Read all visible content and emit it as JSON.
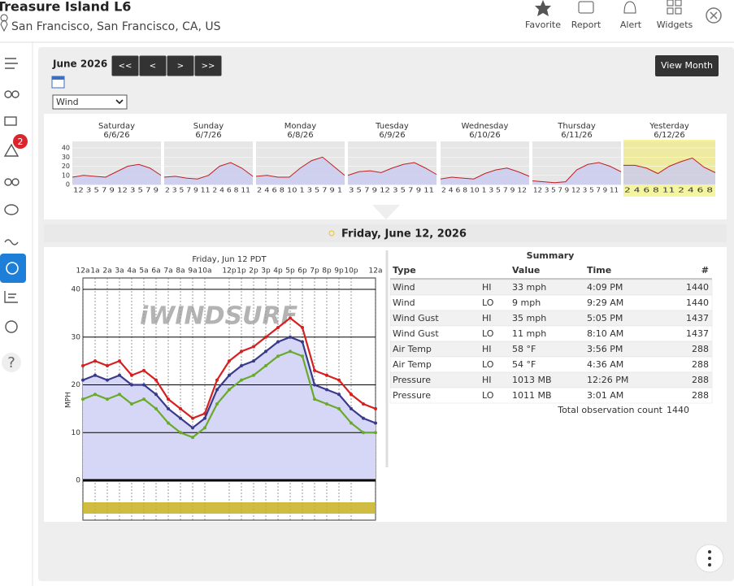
{
  "header": {
    "title": "Treasure Island L6",
    "location": "San Francisco, San Francisco, CA, US",
    "actions": [
      "Favorite",
      "Report",
      "Alert",
      "Widgets"
    ]
  },
  "sidebar": {
    "alert_count": 2
  },
  "toolbar": {
    "month": "June 2026",
    "nav": [
      "<<",
      "<",
      ">",
      ">>"
    ],
    "select": "Wind",
    "view_month": "View Month"
  },
  "days": [
    {
      "name": "Saturday",
      "date": "6/6/26",
      "hours": "12 3 5 7 9 12 3 5 7 9",
      "values": [
        8,
        10,
        9,
        8,
        14,
        20,
        22,
        18,
        10
      ]
    },
    {
      "name": "Sunday",
      "date": "6/7/26",
      "hours": "2 3 5 7 9 11 2 4 6 8 11",
      "values": [
        8,
        9,
        7,
        6,
        10,
        20,
        24,
        18,
        9
      ]
    },
    {
      "name": "Monday",
      "date": "6/8/26",
      "hours": "2 4 6 8 10 1 3 5 7 9 1",
      "values": [
        9,
        10,
        8,
        8,
        18,
        26,
        30,
        20,
        10
      ]
    },
    {
      "name": "Tuesday",
      "date": "6/9/26",
      "hours": "3 5 7 9 12 3 5 7 9 11",
      "values": [
        10,
        14,
        15,
        13,
        18,
        22,
        24,
        18,
        11
      ]
    },
    {
      "name": "Wednesday",
      "date": "6/10/26",
      "hours": "2 4 6 8 10 1 3 5 7 9 12",
      "values": [
        6,
        8,
        7,
        6,
        12,
        16,
        18,
        14,
        9
      ]
    },
    {
      "name": "Thursday",
      "date": "6/11/26",
      "hours": "12 3 5 7 9 12 3 5 7 9 11",
      "values": [
        4,
        3,
        2,
        3,
        16,
        22,
        24,
        20,
        14
      ]
    },
    {
      "name": "Yesterday",
      "date": "6/12/26",
      "hours": "2 4 6 8 11 2 4 6 8",
      "values": [
        21,
        21,
        18,
        12,
        20,
        25,
        29,
        19,
        13
      ]
    }
  ],
  "mini_yticks": [
    0,
    10,
    20,
    30,
    40
  ],
  "selected_date": "Friday, June 12, 2026",
  "main_chart": {
    "title": "Friday, Jun 12 PDT",
    "y_label": "MPH",
    "watermark": "iWINDSURF",
    "ylim": [
      0,
      40
    ],
    "yticks": [
      0,
      10,
      20,
      30,
      40
    ],
    "xlim": [
      0,
      24
    ],
    "xticks": [
      {
        "value": 0,
        "label": "12a"
      },
      {
        "value": 1,
        "label": "1a"
      },
      {
        "value": 2,
        "label": "2a"
      },
      {
        "value": 3,
        "label": "3a"
      },
      {
        "value": 4,
        "label": "4a"
      },
      {
        "value": 5,
        "label": "5a"
      },
      {
        "value": 6,
        "label": "6a"
      },
      {
        "value": 7,
        "label": "7a"
      },
      {
        "value": 8,
        "label": "8a"
      },
      {
        "value": 9,
        "label": "9a"
      },
      {
        "value": 10,
        "label": "10a"
      },
      {
        "value": 12,
        "label": "12p"
      },
      {
        "value": 13,
        "label": "1p"
      },
      {
        "value": 14,
        "label": "2p"
      },
      {
        "value": 15,
        "label": "3p"
      },
      {
        "value": 16,
        "label": "4p"
      },
      {
        "value": 17,
        "label": "5p"
      },
      {
        "value": 18,
        "label": "6p"
      },
      {
        "value": 19,
        "label": "7p"
      },
      {
        "value": 20,
        "label": "8p"
      },
      {
        "value": 21,
        "label": "9p"
      },
      {
        "value": 22,
        "label": "10p"
      },
      {
        "value": 24,
        "label": "12a"
      }
    ],
    "x": [
      0,
      1,
      2,
      3,
      4,
      5,
      6,
      7,
      8,
      9,
      10,
      11,
      12,
      13,
      14,
      15,
      16,
      17,
      18,
      19,
      20,
      21,
      22,
      23,
      24
    ],
    "series": [
      {
        "color": "#d62020",
        "values": [
          24,
          25,
          24,
          25,
          22,
          23,
          21,
          17,
          15,
          13,
          14,
          21,
          25,
          27,
          28,
          30,
          32,
          34,
          32,
          23,
          22,
          21,
          18,
          16,
          15
        ]
      },
      {
        "color": "#3a3a8c",
        "values": [
          21,
          22,
          21,
          22,
          20,
          20,
          18,
          15,
          13,
          11,
          13,
          19,
          22,
          24,
          25,
          27,
          29,
          30,
          29,
          20,
          19,
          18,
          15,
          13,
          12
        ]
      },
      {
        "color": "#6aaa2a",
        "values": [
          17,
          18,
          17,
          18,
          16,
          17,
          15,
          12,
          10,
          9,
          11,
          16,
          19,
          21,
          22,
          24,
          26,
          27,
          26,
          17,
          16,
          15,
          12,
          10,
          10
        ]
      }
    ]
  },
  "summary": {
    "title": "Summary",
    "columns": [
      "Type",
      "Value",
      "Time",
      "#"
    ],
    "rows": [
      [
        "Wind",
        "HI",
        "33 mph",
        "4:09 PM",
        "1440"
      ],
      [
        "Wind",
        "LO",
        "9 mph",
        "9:29 AM",
        "1440"
      ],
      [
        "Wind Gust",
        "HI",
        "35 mph",
        "5:05 PM",
        "1437"
      ],
      [
        "Wind Gust",
        "LO",
        "11 mph",
        "8:10 AM",
        "1437"
      ],
      [
        "Air Temp",
        "HI",
        "58 °F",
        "3:56 PM",
        "288"
      ],
      [
        "Air Temp",
        "LO",
        "54 °F",
        "4:36 AM",
        "288"
      ],
      [
        "Pressure",
        "HI",
        "1013 MB",
        "12:26 PM",
        "288"
      ],
      [
        "Pressure",
        "LO",
        "1011 MB",
        "3:01 AM",
        "288"
      ]
    ],
    "total_label": "Total observation count",
    "total": "1440"
  }
}
